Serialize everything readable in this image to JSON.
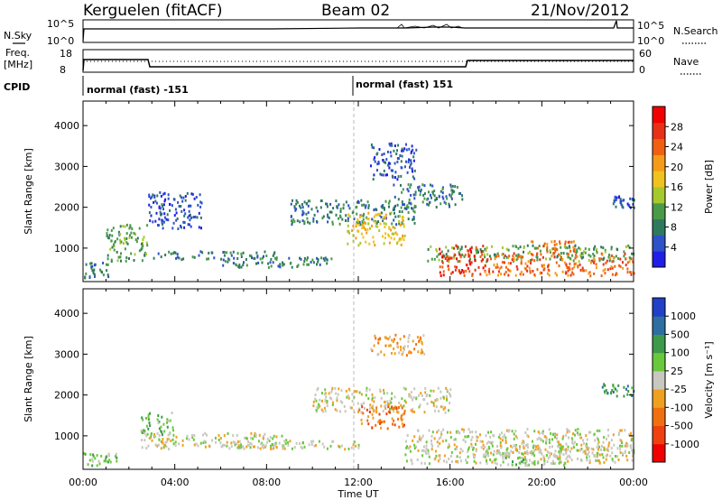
{
  "header": {
    "station": "Kerguelen (fitACF)",
    "beam": "Beam 02",
    "date": "21/Nov/2012"
  },
  "noise_panel": {
    "left_label": "N.Sky",
    "right_label": "N.Search",
    "left_ticks": [
      "10^5",
      "10^0"
    ],
    "right_ticks": [
      "10^5",
      "10^0"
    ]
  },
  "freq_panel": {
    "left_label_1": "Freq.",
    "left_label_2": "[MHz]",
    "right_label": "Nave",
    "left_ticks": [
      "18",
      "8"
    ],
    "right_ticks": [
      "60",
      "0"
    ]
  },
  "cpid": {
    "label": "CPID",
    "segments": [
      {
        "start_hour": 0,
        "text": "normal (fast) -151"
      },
      {
        "start_hour": 12,
        "text": "normal (fast) 151"
      }
    ]
  },
  "chart_data": [
    {
      "type": "heatmap",
      "panel": "power",
      "ylabel": "Slant Range [km]",
      "xlabel": "Time UT",
      "x_ticks": [
        "00:00",
        "04:00",
        "08:00",
        "12:00",
        "16:00",
        "20:00",
        "00:00"
      ],
      "y_ticks": [
        1000,
        2000,
        3000,
        4000
      ],
      "ylim": [
        180,
        4600
      ],
      "xlim_hours": [
        0,
        24
      ],
      "colorbar": {
        "label": "Power [dB]",
        "ticks": [
          "4",
          "8",
          "12",
          "16",
          "20",
          "24",
          "28"
        ],
        "colors": [
          "#1f1fe6",
          "#2e52c8",
          "#2f7a5e",
          "#4a9a48",
          "#a6c92e",
          "#f0c21e",
          "#f59b1a",
          "#f06010",
          "#e83018",
          "#f00000"
        ]
      },
      "regions": [
        {
          "t": [
            0.0,
            1.2
          ],
          "r": [
            300,
            700
          ],
          "level": 2
        },
        {
          "t": [
            1.0,
            2.8
          ],
          "r": [
            700,
            1600
          ],
          "level": 3
        },
        {
          "t": [
            2.8,
            5.2
          ],
          "r": [
            1500,
            2400
          ],
          "level": 1
        },
        {
          "t": [
            3.0,
            8.5
          ],
          "r": [
            750,
            950
          ],
          "level": 2
        },
        {
          "t": [
            6.0,
            11.0
          ],
          "r": [
            550,
            800
          ],
          "level": 2
        },
        {
          "t": [
            9.0,
            14.5
          ],
          "r": [
            1600,
            2200
          ],
          "level": 2
        },
        {
          "t": [
            11.5,
            14.0
          ],
          "r": [
            1100,
            1900
          ],
          "level": 5
        },
        {
          "t": [
            12.5,
            14.5
          ],
          "r": [
            2700,
            3600
          ],
          "level": 1
        },
        {
          "t": [
            13.5,
            16.5
          ],
          "r": [
            2000,
            2600
          ],
          "level": 2
        },
        {
          "t": [
            15.0,
            24.0
          ],
          "r": [
            700,
            1100
          ],
          "level": 3
        },
        {
          "t": [
            15.5,
            17.5
          ],
          "r": [
            350,
            1100
          ],
          "level": 8
        },
        {
          "t": [
            17.5,
            24.0
          ],
          "r": [
            350,
            900
          ],
          "level": 7
        },
        {
          "t": [
            19.5,
            21.5
          ],
          "r": [
            900,
            1200
          ],
          "level": 7
        },
        {
          "t": [
            23.0,
            24.0
          ],
          "r": [
            2000,
            2300
          ],
          "level": 1
        }
      ]
    },
    {
      "type": "heatmap",
      "panel": "velocity",
      "ylabel": "Slant Range [km]",
      "xlabel": "Time UT",
      "x_ticks": [
        "00:00",
        "04:00",
        "08:00",
        "12:00",
        "16:00",
        "20:00",
        "00:00"
      ],
      "y_ticks": [
        1000,
        2000,
        3000,
        4000
      ],
      "ylim": [
        180,
        4600
      ],
      "xlim_hours": [
        0,
        24
      ],
      "colorbar": {
        "label": "Velocity [m s⁻¹]",
        "ticks": [
          "1000",
          "500",
          "100",
          "25",
          "-25",
          "-100",
          "-500",
          "-1000"
        ],
        "colors": [
          "#2040c8",
          "#2e6ea0",
          "#3c9a4a",
          "#6ac83c",
          "#c8c8c0",
          "#f0a020",
          "#f07010",
          "#f04010",
          "#f00000"
        ]
      },
      "regions": [
        {
          "t": [
            0.0,
            1.5
          ],
          "r": [
            300,
            600
          ],
          "level": 3
        },
        {
          "t": [
            2.5,
            4.0
          ],
          "r": [
            1000,
            1600
          ],
          "level": 3
        },
        {
          "t": [
            2.5,
            9.0
          ],
          "r": [
            700,
            1100
          ],
          "level": 4
        },
        {
          "t": [
            6.0,
            12.0
          ],
          "r": [
            700,
            900
          ],
          "level": 4
        },
        {
          "t": [
            10.0,
            16.0
          ],
          "r": [
            1600,
            2200
          ],
          "level": 4
        },
        {
          "t": [
            12.0,
            14.0
          ],
          "r": [
            1200,
            1800
          ],
          "level": 6
        },
        {
          "t": [
            12.5,
            15.0
          ],
          "r": [
            3000,
            3500
          ],
          "level": 5
        },
        {
          "t": [
            14.0,
            24.0
          ],
          "r": [
            350,
            1200
          ],
          "level": 4
        },
        {
          "t": [
            17.0,
            24.0
          ],
          "r": [
            500,
            800
          ],
          "level": 4
        },
        {
          "t": [
            17.5,
            21.0
          ],
          "r": [
            300,
            500
          ],
          "level": 3
        },
        {
          "t": [
            22.5,
            24.0
          ],
          "r": [
            2000,
            2300
          ],
          "level": 2
        }
      ]
    }
  ]
}
